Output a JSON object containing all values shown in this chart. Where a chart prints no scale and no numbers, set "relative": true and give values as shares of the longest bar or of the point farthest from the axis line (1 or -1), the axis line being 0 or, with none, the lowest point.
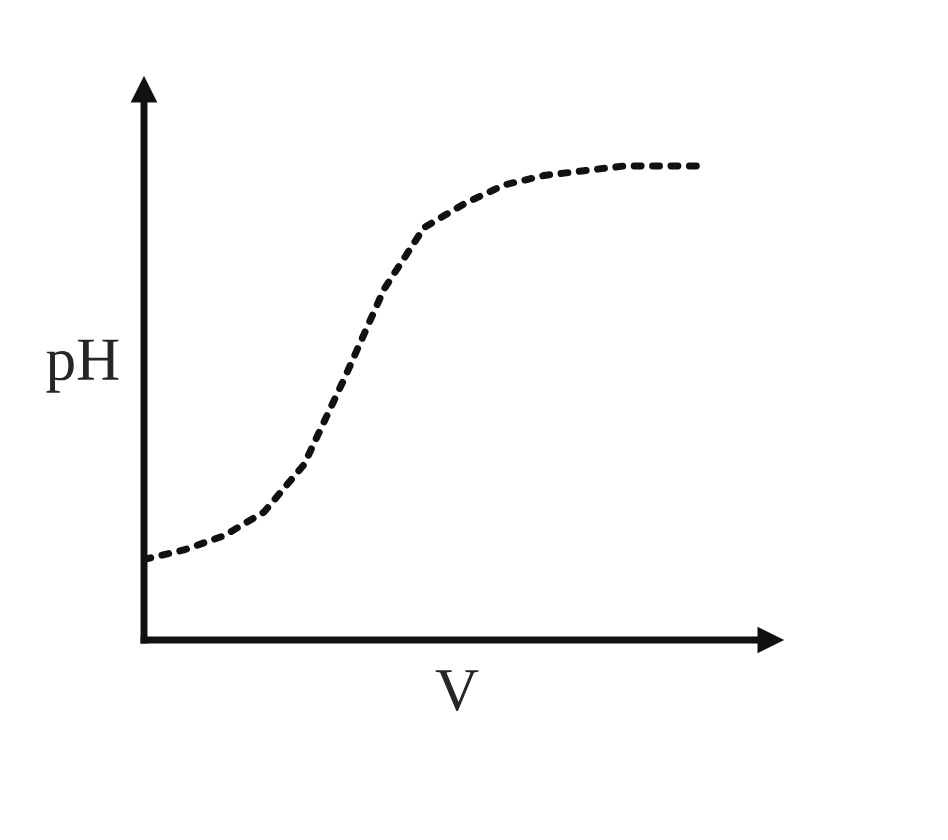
{
  "chart_data": {
    "type": "line",
    "relative": true,
    "xlabel": "V",
    "ylabel": "pH",
    "categories": [
      null,
      null,
      null,
      null,
      null,
      null,
      null,
      null,
      null,
      null,
      null,
      null,
      null,
      null,
      null
    ],
    "series": [
      {
        "color": "#111111",
        "values": [
          0.17,
          0.19,
          0.22,
          0.27,
          0.37,
          0.55,
          0.74,
          0.87,
          0.92,
          0.96,
          0.98,
          0.99,
          1.0,
          1.0,
          1.0
        ]
      }
    ],
    "marker": "none",
    "line_style": "dotted",
    "legend": false
  }
}
